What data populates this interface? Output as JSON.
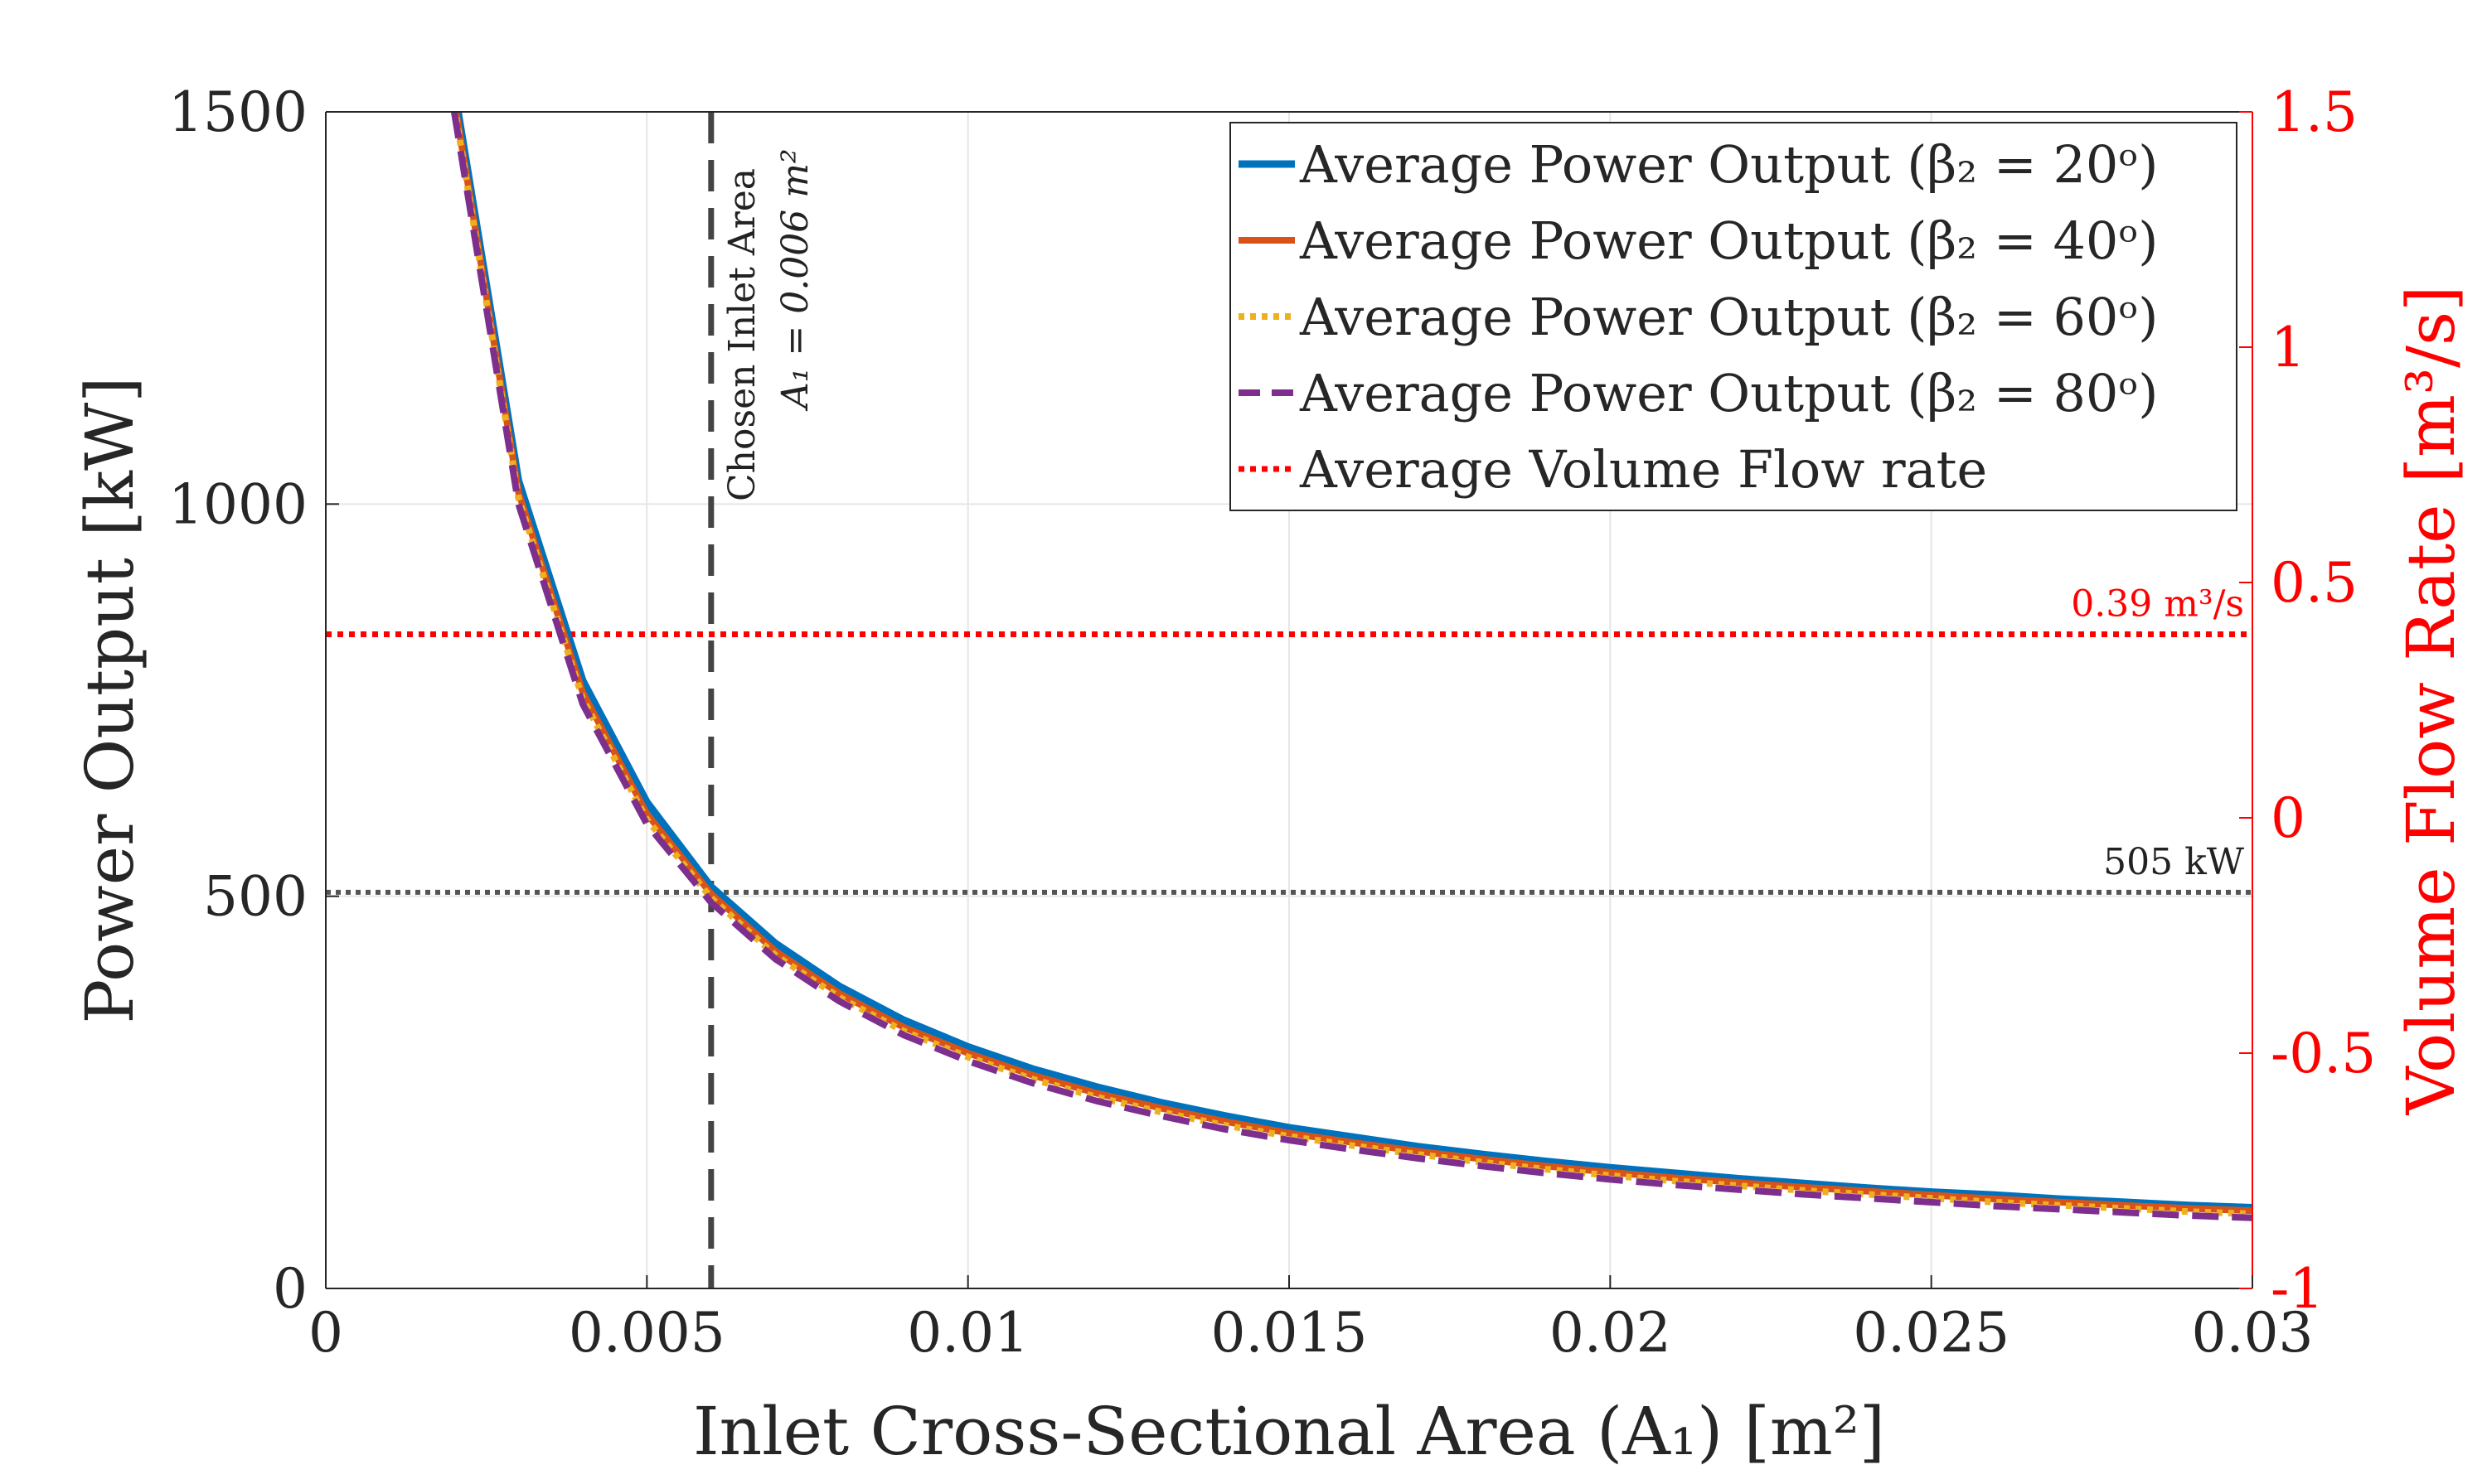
{
  "chart_data": {
    "type": "line",
    "xlabel": "Inlet Cross-Sectional Area (A₁) [m²]",
    "ylabel": "Power Output [kW]",
    "y2label": "Volume Flow Rate [m³/s]",
    "xlim": [
      0,
      0.03
    ],
    "ylim": [
      0,
      1500
    ],
    "y2lim": [
      -1,
      1.5
    ],
    "x_ticks": [
      0,
      0.005,
      0.01,
      0.015,
      0.02,
      0.025,
      0.03
    ],
    "x_tick_labels": [
      "0",
      "0.005",
      "0.01",
      "0.015",
      "0.02",
      "0.025",
      "0.03"
    ],
    "y_ticks": [
      0,
      500,
      1000,
      1500
    ],
    "y_tick_labels": [
      "0",
      "500",
      "1000",
      "1500"
    ],
    "y2_ticks": [
      -1,
      -0.5,
      0,
      0.5,
      1,
      1.5
    ],
    "y2_tick_labels": [
      "-1",
      "-0.5",
      "0",
      "0.5",
      "1",
      "1.5"
    ],
    "grid": true,
    "legend_position": "top-right",
    "x": [
      0.002,
      0.003,
      0.004,
      0.005,
      0.006,
      0.007,
      0.008,
      0.009,
      0.01,
      0.011,
      0.012,
      0.013,
      0.014,
      0.015,
      0.016,
      0.017,
      0.018,
      0.019,
      0.02,
      0.021,
      0.022,
      0.023,
      0.024,
      0.025,
      0.026,
      0.027,
      0.028,
      0.029,
      0.03
    ],
    "series": [
      {
        "name": "Average Power Output (β₂ = 20ᵒ)",
        "color": "#0072BD",
        "style": "solid",
        "values": [
          1530,
          1030,
          775,
          620,
          512,
          440,
          385,
          342,
          308,
          280,
          257,
          237,
          220,
          205,
          193,
          181,
          171,
          162,
          154,
          147,
          140,
          134,
          128,
          123,
          119,
          114,
          110,
          106,
          103
        ]
      },
      {
        "name": "Average Power Output (β₂ = 40ᵒ)",
        "color": "#D95319",
        "style": "solid",
        "values": [
          1515,
          1015,
          760,
          605,
          503,
          430,
          376,
          333,
          300,
          272,
          249,
          230,
          213,
          198,
          186,
          175,
          165,
          156,
          148,
          141,
          135,
          129,
          124,
          119,
          114,
          110,
          106,
          102,
          99
        ]
      },
      {
        "name": "Average Power Output (β₂ = 60ᵒ)",
        "color": "#EDB120",
        "style": "dotted",
        "values": [
          1508,
          1008,
          752,
          598,
          498,
          425,
          371,
          328,
          295,
          267,
          244,
          225,
          208,
          194,
          182,
          171,
          161,
          152,
          144,
          137,
          131,
          125,
          120,
          115,
          110,
          106,
          102,
          98,
          95
        ]
      },
      {
        "name": "Average Power Output (β₂ = 80ᵒ)",
        "color": "#7E2F8E",
        "style": "dashed",
        "values": [
          1500,
          1000,
          745,
          592,
          492,
          420,
          366,
          323,
          290,
          262,
          239,
          220,
          203,
          189,
          177,
          166,
          156,
          147,
          139,
          132,
          126,
          120,
          115,
          110,
          105,
          101,
          97,
          93,
          90
        ]
      }
    ],
    "volume_flow": {
      "name": "Average Volume Flow rate",
      "color": "#FF0000",
      "style": "dotted",
      "axis": "right",
      "value": 0.39,
      "label": "0.39 m³/s"
    },
    "reference_power": {
      "value": 505,
      "label": "505 kW",
      "color": "#555555"
    },
    "chosen_area": {
      "value": 0.006,
      "label_line1": "Chosen Inlet Area",
      "label_line2": "A₁ = 0.006 m²",
      "color": "#444444"
    }
  }
}
